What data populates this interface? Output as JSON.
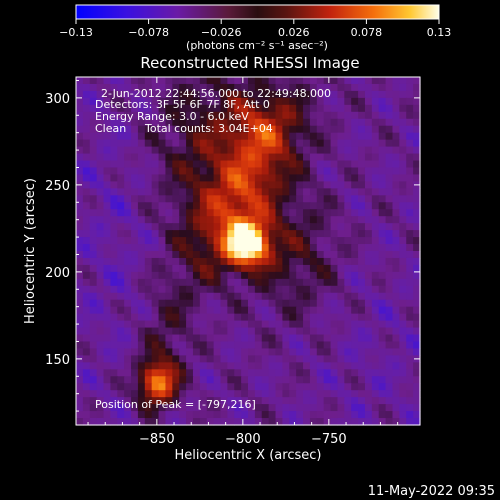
{
  "chart_data": {
    "type": "heatmap",
    "title": "Reconstructed RHESSI Image",
    "xlabel": "Heliocentric X (arcsec)",
    "ylabel": "Heliocentric Y (arcsec)",
    "xlim": [
      -897,
      -697
    ],
    "ylim": [
      112,
      312
    ],
    "xticks": [
      {
        "value": -850,
        "label": "−850"
      },
      {
        "value": -800,
        "label": "−800"
      },
      {
        "value": -750,
        "label": "−750"
      }
    ],
    "yticks": [
      {
        "value": 150,
        "label": "150"
      },
      {
        "value": 200,
        "label": "200"
      },
      {
        "value": 250,
        "label": "250"
      },
      {
        "value": 300,
        "label": "300"
      }
    ],
    "colorbar": {
      "range": [
        -0.13,
        0.13
      ],
      "ticks": [
        {
          "value": -0.13,
          "label": "−0.13"
        },
        {
          "value": -0.078,
          "label": "−0.078"
        },
        {
          "value": -0.026,
          "label": "−0.026"
        },
        {
          "value": 0.026,
          "label": "0.026"
        },
        {
          "value": 0.078,
          "label": "0.078"
        },
        {
          "value": 0.13,
          "label": "0.13"
        }
      ],
      "unit_label": "(photons cm⁻² s⁻¹ asec⁻²)"
    },
    "annotations": {
      "time_range": "2-Jun-2012 22:44:56.000 to 22:49:48.000",
      "detectors": "Detectors: 3F 5F 6F 7F 8F, Att 0",
      "energy_range": "Energy Range: 3.0 - 6.0 keV",
      "method": "Clean",
      "total_counts": "Total counts: 3.04E+04",
      "peak_position": "Position of Peak = [-797,216]"
    },
    "sources": [
      {
        "x": -797,
        "y": 216,
        "peak": 0.13
      },
      {
        "x": -850,
        "y": 136,
        "peak": 0.095
      }
    ]
  },
  "footer": {
    "timestamp": "11-May-2022 09:35"
  },
  "colors": {
    "background": "#000000",
    "text": "#ffffff"
  }
}
